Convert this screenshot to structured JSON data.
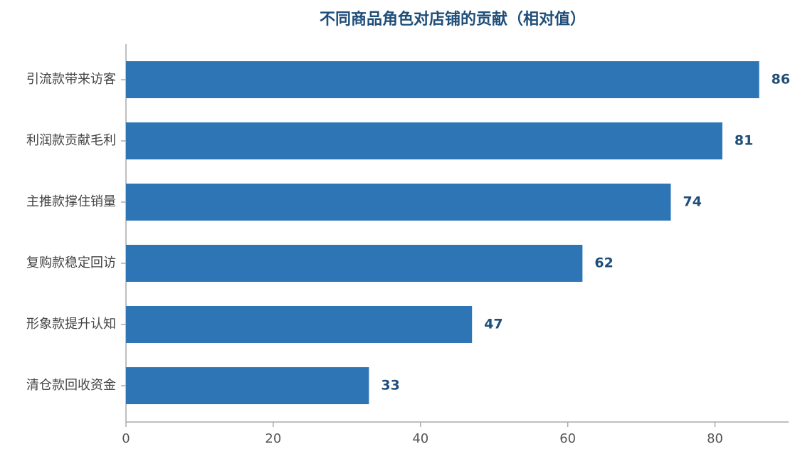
{
  "chart_data": {
    "type": "barh",
    "title": "不同商品角色对店铺的贡献（相对值）",
    "categories": [
      "引流款带来访客",
      "利润款贡献毛利",
      "主推款撑住销量",
      "复购款稳定回访",
      "形象款提升认知",
      "清仓款回收资金"
    ],
    "values": [
      86,
      81,
      74,
      62,
      47,
      33
    ],
    "color": "#2e75b6",
    "xlim": [
      0,
      90
    ],
    "xticks": [
      0,
      20,
      40,
      60,
      80
    ],
    "grid": false
  }
}
